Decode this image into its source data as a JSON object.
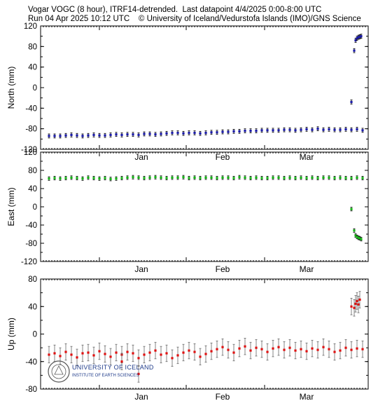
{
  "header": {
    "line1": "Vogar VOGC (8 hour), ITRF14-detrended.  Last datapoint 4/4/2025 0:00-8:00 UTC",
    "line2": "Run 04 Apr 2025 10:12 UTC    © University of Iceland/Vedurstofa Islands (IMO)/GNS Science"
  },
  "logo": {
    "line1": "UNIVERSITY OF ICELAND",
    "line2": "INSTITUTE OF EARTH SCIENCES",
    "color": "#1f3b8a"
  },
  "chart_data": [
    {
      "type": "scatter",
      "ylabel": "North (mm)",
      "ylim": [
        -120,
        120
      ],
      "yticks": [
        -120,
        -80,
        -40,
        0,
        40,
        80,
        120
      ],
      "xlim": [
        "2024-12-11",
        "2025-04-07"
      ],
      "month_labels": [
        "Jan",
        "Feb",
        "Mar"
      ],
      "color": "#1a1aa6",
      "error_bar_mm": 4,
      "series": [
        {
          "x_start": "2024-12-14",
          "x_step_days": 2,
          "y": [
            -94,
            -94,
            -94,
            -93,
            -92,
            -93,
            -94,
            -93,
            -92,
            -93,
            -93,
            -92,
            -91,
            -92,
            -91,
            -91,
            -92,
            -90,
            -90,
            -91,
            -90,
            -89,
            -88,
            -88,
            -89,
            -88,
            -88,
            -89,
            -88,
            -87,
            -87,
            -86,
            -86,
            -85,
            -85,
            -84,
            -84,
            -84,
            -83,
            -83,
            -83,
            -83,
            -82,
            -82,
            -83,
            -82,
            -81,
            -82,
            -80,
            -82,
            -81,
            -82,
            -82,
            -81,
            -82,
            -81,
            -83
          ]
        },
        {
          "x": [
            "2025-04-01",
            "2025-04-02",
            "2025-04-02",
            "2025-04-03",
            "2025-04-03",
            "2025-04-04",
            "2025-04-04"
          ],
          "y": [
            -28,
            72,
            92,
            96,
            98,
            99,
            100
          ]
        }
      ]
    },
    {
      "type": "scatter",
      "ylabel": "East (mm)",
      "ylim": [
        -120,
        120
      ],
      "yticks": [
        -120,
        -80,
        -40,
        0,
        40,
        80,
        120
      ],
      "xlim": [
        "2024-12-11",
        "2025-04-07"
      ],
      "month_labels": [
        "Jan",
        "Feb",
        "Mar"
      ],
      "color": "#18b418",
      "error_bar_mm": 4,
      "series": [
        {
          "x_start": "2024-12-14",
          "x_step_days": 2,
          "y": [
            62,
            63,
            62,
            63,
            64,
            63,
            62,
            64,
            63,
            62,
            63,
            61,
            62,
            63,
            64,
            65,
            64,
            63,
            64,
            65,
            64,
            63,
            64,
            64,
            65,
            63,
            64,
            63,
            64,
            64,
            63,
            64,
            64,
            63,
            65,
            64,
            63,
            64,
            63,
            63,
            64,
            64,
            63,
            64,
            63,
            64,
            63,
            64,
            63,
            64,
            64,
            63,
            64,
            63,
            63,
            64,
            63
          ]
        },
        {
          "x": [
            "2025-04-01",
            "2025-04-02",
            "2025-04-02",
            "2025-04-03",
            "2025-04-03",
            "2025-04-04",
            "2025-04-04"
          ],
          "y": [
            -5,
            -52,
            -63,
            -66,
            -68,
            -69,
            -71
          ]
        }
      ]
    },
    {
      "type": "scatter",
      "ylabel": "Up (mm)",
      "ylim": [
        -80,
        80
      ],
      "yticks": [
        -80,
        -40,
        0,
        40,
        80
      ],
      "xlim": [
        "2024-12-11",
        "2025-04-07"
      ],
      "month_labels": [
        "Jan",
        "Feb",
        "Mar"
      ],
      "color": "#e01010",
      "error_bar_mm": 12,
      "series": [
        {
          "x_start": "2024-12-14",
          "x_step_days": 2,
          "y": [
            -30,
            -28,
            -32,
            -26,
            -30,
            -34,
            -28,
            -27,
            -31,
            -25,
            -29,
            -33,
            -27,
            -30,
            -26,
            -28,
            -35,
            -30,
            -27,
            -24,
            -30,
            -28,
            -35,
            -31,
            -27,
            -24,
            -26,
            -33,
            -29,
            -25,
            -22,
            -19,
            -23,
            -27,
            -21,
            -18,
            -24,
            -20,
            -22,
            -26,
            -21,
            -19,
            -23,
            -20,
            -24,
            -22,
            -25,
            -21,
            -23,
            -19,
            -22,
            -26,
            -24,
            -20,
            -23,
            -21,
            -22
          ]
        },
        {
          "x": [
            "2025-01-09",
            "2025-01-15"
          ],
          "y": [
            -40,
            -58
          ]
        },
        {
          "x": [
            "2025-04-01",
            "2025-04-02",
            "2025-04-02",
            "2025-04-03",
            "2025-04-03",
            "2025-04-04"
          ],
          "y": [
            40,
            38,
            44,
            48,
            43,
            50
          ]
        }
      ]
    }
  ]
}
